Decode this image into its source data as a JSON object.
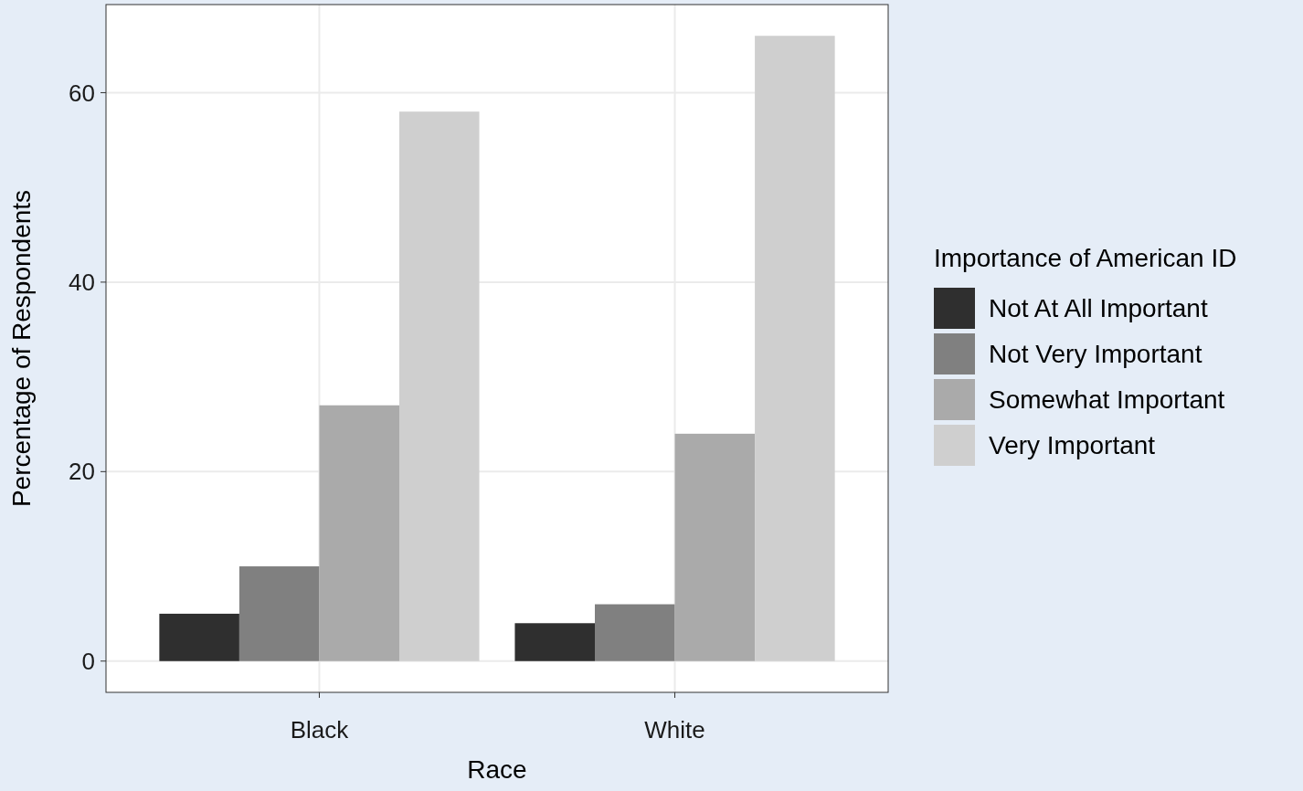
{
  "chart_data": {
    "type": "bar",
    "xlabel": "Race",
    "ylabel": "Percentage of Respondents",
    "legend_title": "Importance of American ID",
    "categories": [
      "Black",
      "White"
    ],
    "series": [
      {
        "name": "Not At All Important",
        "color": "#2f2f2f",
        "values": [
          5,
          4
        ]
      },
      {
        "name": "Not Very Important",
        "color": "#808080",
        "values": [
          10,
          6
        ]
      },
      {
        "name": "Somewhat Important",
        "color": "#aaaaaa",
        "values": [
          27,
          24
        ]
      },
      {
        "name": "Very Important",
        "color": "#cfcfcf",
        "values": [
          58,
          66
        ]
      }
    ],
    "ylim": [
      -3.3,
      69.3
    ],
    "yticks": [
      0,
      20,
      40,
      60
    ],
    "grid": true,
    "legend": "right"
  }
}
